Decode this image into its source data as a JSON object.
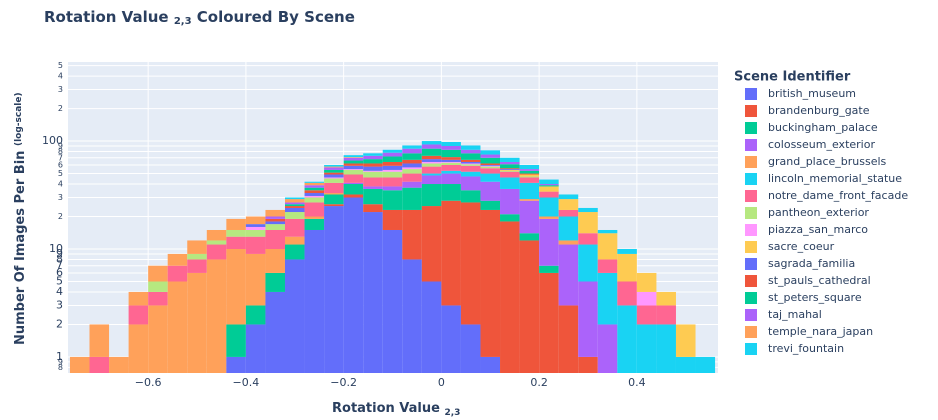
{
  "chart_data": {
    "type": "histogram",
    "title": {
      "main": "Rotation Value",
      "sub": "2,3",
      "rest": "Coloured By Scene"
    },
    "x_label": {
      "main": "Rotation Value",
      "sub": "2,3"
    },
    "y_label": {
      "main": "Number Of Images Per Bin",
      "sub": "(log-scale)"
    },
    "legend_title": "Scene Identifier",
    "legend_position": "right",
    "log_y": true,
    "grid": true,
    "bins": [
      -0.76,
      -0.72,
      -0.68,
      -0.64,
      -0.6,
      -0.56,
      -0.52,
      -0.48,
      -0.44,
      -0.4,
      -0.36,
      -0.32,
      -0.28,
      -0.24,
      -0.2,
      -0.16,
      -0.12,
      -0.08,
      -0.04,
      0,
      0.04,
      0.08,
      0.12,
      0.16,
      0.2,
      0.24,
      0.28,
      0.32,
      0.36,
      0.4,
      0.44,
      0.48,
      0.52,
      0.56
    ],
    "xlim": [
      -0.764,
      0.566
    ],
    "xticks": [
      {
        "value": -0.6,
        "label": "−0.6"
      },
      {
        "value": -0.4,
        "label": "−0.4"
      },
      {
        "value": -0.2,
        "label": "−0.2"
      },
      0,
      0.2,
      0.4
    ],
    "ylim": [
      0.71,
      540
    ],
    "yticks": [
      {
        "value": 0.8,
        "label": "8"
      },
      {
        "value": 0.9,
        "label": "9"
      },
      1,
      2,
      3,
      4,
      5,
      6,
      7,
      8,
      9,
      10,
      {
        "value": 20,
        "label": "2"
      },
      {
        "value": 30,
        "label": "3"
      },
      {
        "value": 40,
        "label": "4"
      },
      {
        "value": 50,
        "label": "5"
      },
      {
        "value": 60,
        "label": "6"
      },
      {
        "value": 70,
        "label": "7"
      },
      {
        "value": 80,
        "label": "8"
      },
      {
        "value": 90,
        "label": "9"
      },
      100,
      {
        "value": 200,
        "label": "2"
      },
      {
        "value": 300,
        "label": "3"
      },
      {
        "value": 400,
        "label": "4"
      },
      {
        "value": 500,
        "label": "5"
      }
    ],
    "series": [
      {
        "name": "british_museum",
        "color": "#636efa",
        "values": [
          0,
          0,
          0,
          0,
          0,
          0,
          0,
          0,
          1,
          2,
          4,
          8,
          15,
          25,
          30,
          22,
          15,
          8,
          5,
          3,
          2,
          1,
          0,
          0,
          0,
          0,
          0,
          0,
          0,
          0,
          0,
          0,
          0
        ]
      },
      {
        "name": "brandenburg_gate",
        "color": "#ef553b",
        "values": [
          0,
          0,
          0,
          0,
          0,
          0,
          0,
          0,
          0,
          0,
          0,
          0,
          0,
          1,
          2,
          4,
          8,
          15,
          20,
          25,
          25,
          22,
          18,
          12,
          6,
          3,
          1,
          0,
          0,
          0,
          0,
          0,
          0
        ]
      },
      {
        "name": "buckingham_palace",
        "color": "#00cc96",
        "values": [
          0,
          0,
          0,
          0,
          0,
          0,
          0,
          0,
          1,
          1,
          2,
          3,
          4,
          6,
          8,
          10,
          12,
          14,
          15,
          12,
          8,
          5,
          3,
          2,
          1,
          0,
          0,
          0,
          0,
          0,
          0,
          0,
          0
        ]
      },
      {
        "name": "colosseum_exterior",
        "color": "#ab63fa",
        "values": [
          0,
          0,
          0,
          0,
          0,
          0,
          0,
          0,
          0,
          0,
          0,
          0,
          0,
          0,
          1,
          2,
          3,
          5,
          8,
          10,
          12,
          14,
          15,
          14,
          12,
          8,
          4,
          2,
          0,
          0,
          0,
          0,
          0
        ]
      },
      {
        "name": "grand_place_brussels",
        "color": "#ffa15a",
        "values": [
          1,
          0,
          1,
          2,
          3,
          5,
          6,
          8,
          8,
          6,
          4,
          2,
          1,
          1,
          0,
          0,
          0,
          0,
          0,
          0,
          0,
          0,
          0,
          1,
          1,
          1,
          0,
          0,
          0,
          0,
          0,
          0,
          0
        ]
      },
      {
        "name": "lincoln_memorial_statue",
        "color": "#19d3f3",
        "values": [
          0,
          0,
          0,
          0,
          0,
          0,
          0,
          0,
          0,
          0,
          0,
          0,
          0,
          0,
          0,
          0,
          0,
          0,
          2,
          3,
          5,
          8,
          10,
          12,
          10,
          8,
          6,
          4,
          3,
          2,
          2,
          1,
          1
        ]
      },
      {
        "name": "notre_dame_front_facade",
        "color": "#ff6692",
        "values": [
          0,
          1,
          0,
          1,
          1,
          2,
          2,
          3,
          3,
          4,
          5,
          6,
          7,
          8,
          8,
          8,
          8,
          8,
          8,
          7,
          7,
          6,
          6,
          5,
          4,
          3,
          3,
          2,
          2,
          1,
          1,
          0,
          0
        ]
      },
      {
        "name": "pantheon_exterior",
        "color": "#b6e880",
        "values": [
          0,
          0,
          0,
          0,
          1,
          0,
          1,
          1,
          2,
          2,
          2,
          3,
          3,
          4,
          5,
          6,
          6,
          5,
          4,
          3,
          2,
          2,
          1,
          1,
          0,
          0,
          0,
          0,
          0,
          0,
          0,
          0,
          0
        ]
      },
      {
        "name": "piazza_san_marco",
        "color": "#ff97ff",
        "values": [
          0,
          0,
          0,
          0,
          0,
          0,
          0,
          0,
          0,
          1,
          0,
          0,
          1,
          1,
          1,
          1,
          2,
          2,
          2,
          1,
          1,
          1,
          0,
          0,
          0,
          0,
          0,
          0,
          0,
          1,
          0,
          0,
          0
        ]
      },
      {
        "name": "sacre_coeur",
        "color": "#fecb52",
        "values": [
          0,
          0,
          0,
          0,
          0,
          0,
          0,
          0,
          0,
          0,
          0,
          0,
          0,
          0,
          0,
          0,
          0,
          0,
          0,
          0,
          0,
          0,
          1,
          2,
          4,
          6,
          8,
          6,
          4,
          2,
          1,
          1,
          0
        ]
      },
      {
        "name": "sagrada_familia",
        "color": "#636efa",
        "values": [
          0,
          0,
          0,
          0,
          0,
          0,
          0,
          0,
          0,
          1,
          1,
          2,
          2,
          3,
          4,
          5,
          5,
          5,
          4,
          3,
          2,
          1,
          1,
          0,
          0,
          0,
          0,
          0,
          0,
          0,
          0,
          0,
          0
        ]
      },
      {
        "name": "st_pauls_cathedral",
        "color": "#ef553b",
        "values": [
          0,
          0,
          0,
          0,
          0,
          0,
          0,
          0,
          0,
          0,
          1,
          1,
          2,
          2,
          3,
          4,
          5,
          5,
          5,
          4,
          3,
          2,
          1,
          1,
          0,
          0,
          0,
          0,
          0,
          0,
          0,
          0,
          0
        ]
      },
      {
        "name": "st_peters_square",
        "color": "#00cc96",
        "values": [
          0,
          0,
          0,
          0,
          0,
          0,
          0,
          0,
          0,
          0,
          0,
          1,
          2,
          3,
          4,
          6,
          8,
          10,
          12,
          12,
          10,
          8,
          5,
          3,
          1,
          0,
          0,
          0,
          0,
          0,
          0,
          0,
          0
        ]
      },
      {
        "name": "taj_mahal",
        "color": "#ab63fa",
        "values": [
          0,
          0,
          0,
          0,
          0,
          0,
          0,
          0,
          0,
          0,
          1,
          1,
          2,
          3,
          4,
          5,
          6,
          8,
          8,
          7,
          6,
          5,
          3,
          2,
          1,
          0,
          0,
          0,
          0,
          0,
          0,
          0,
          0
        ]
      },
      {
        "name": "temple_nara_japan",
        "color": "#ffa15a",
        "values": [
          0,
          1,
          0,
          1,
          2,
          2,
          3,
          3,
          4,
          3,
          3,
          2,
          2,
          1,
          1,
          0,
          0,
          0,
          0,
          0,
          0,
          0,
          0,
          0,
          0,
          0,
          0,
          0,
          0,
          0,
          0,
          0,
          0
        ]
      },
      {
        "name": "trevi_fountain",
        "color": "#19d3f3",
        "values": [
          0,
          0,
          0,
          0,
          0,
          0,
          0,
          0,
          0,
          0,
          0,
          1,
          1,
          2,
          3,
          4,
          5,
          6,
          7,
          8,
          8,
          7,
          6,
          5,
          4,
          3,
          2,
          1,
          1,
          0,
          0,
          0,
          0
        ]
      }
    ]
  }
}
